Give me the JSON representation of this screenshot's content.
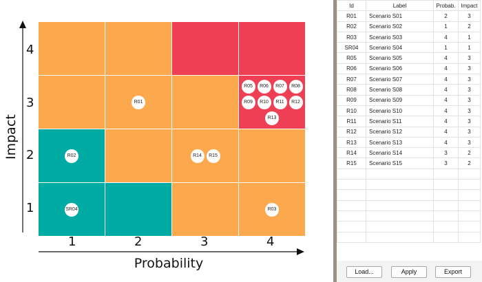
{
  "matrix": {
    "x_axis_title": "Probability",
    "y_axis_title": "Impact",
    "x_ticks": [
      "1",
      "2",
      "3",
      "4"
    ],
    "y_ticks": [
      "1",
      "2",
      "3",
      "4"
    ],
    "colors": {
      "orange": "#fca84d",
      "red": "#ee3f55",
      "teal": "#00aba3"
    },
    "cell_colors": [
      {
        "probability": 1,
        "impact": 4,
        "color": "orange"
      },
      {
        "probability": 2,
        "impact": 4,
        "color": "orange"
      },
      {
        "probability": 3,
        "impact": 4,
        "color": "red"
      },
      {
        "probability": 4,
        "impact": 4,
        "color": "red"
      },
      {
        "probability": 1,
        "impact": 3,
        "color": "orange"
      },
      {
        "probability": 2,
        "impact": 3,
        "color": "orange"
      },
      {
        "probability": 3,
        "impact": 3,
        "color": "orange"
      },
      {
        "probability": 4,
        "impact": 3,
        "color": "red"
      },
      {
        "probability": 1,
        "impact": 2,
        "color": "teal"
      },
      {
        "probability": 2,
        "impact": 2,
        "color": "orange"
      },
      {
        "probability": 3,
        "impact": 2,
        "color": "orange"
      },
      {
        "probability": 4,
        "impact": 2,
        "color": "orange"
      },
      {
        "probability": 1,
        "impact": 1,
        "color": "teal"
      },
      {
        "probability": 2,
        "impact": 1,
        "color": "teal"
      },
      {
        "probability": 3,
        "impact": 1,
        "color": "orange"
      },
      {
        "probability": 4,
        "impact": 1,
        "color": "orange"
      }
    ]
  },
  "table": {
    "columns": [
      "Id",
      "Label",
      "Probab.",
      "Impact"
    ],
    "rows": [
      {
        "id": "R01",
        "label": "Scenario S01",
        "probability": 2,
        "impact": 3
      },
      {
        "id": "R02",
        "label": "Scenario S02",
        "probability": 1,
        "impact": 2
      },
      {
        "id": "R03",
        "label": "Scenario S03",
        "probability": 4,
        "impact": 1
      },
      {
        "id": "SR04",
        "label": "Scenario S04",
        "probability": 1,
        "impact": 1
      },
      {
        "id": "R05",
        "label": "Scenario S05",
        "probability": 4,
        "impact": 3
      },
      {
        "id": "R06",
        "label": "Scenario S06",
        "probability": 4,
        "impact": 3
      },
      {
        "id": "R07",
        "label": "Scenario S07",
        "probability": 4,
        "impact": 3
      },
      {
        "id": "R08",
        "label": "Scenario S08",
        "probability": 4,
        "impact": 3
      },
      {
        "id": "R09",
        "label": "Scenario S09",
        "probability": 4,
        "impact": 3
      },
      {
        "id": "R10",
        "label": "Scenario S10",
        "probability": 4,
        "impact": 3
      },
      {
        "id": "R11",
        "label": "Scenario S11",
        "probability": 4,
        "impact": 3
      },
      {
        "id": "R12",
        "label": "Scenario S12",
        "probability": 4,
        "impact": 3
      },
      {
        "id": "R13",
        "label": "Scenario S13",
        "probability": 4,
        "impact": 3
      },
      {
        "id": "R14",
        "label": "Scenario S14",
        "probability": 3,
        "impact": 2
      },
      {
        "id": "R15",
        "label": "Scenario S15",
        "probability": 3,
        "impact": 2
      }
    ]
  },
  "buttons": {
    "load": "Load...",
    "apply": "Apply",
    "export": "Export"
  }
}
